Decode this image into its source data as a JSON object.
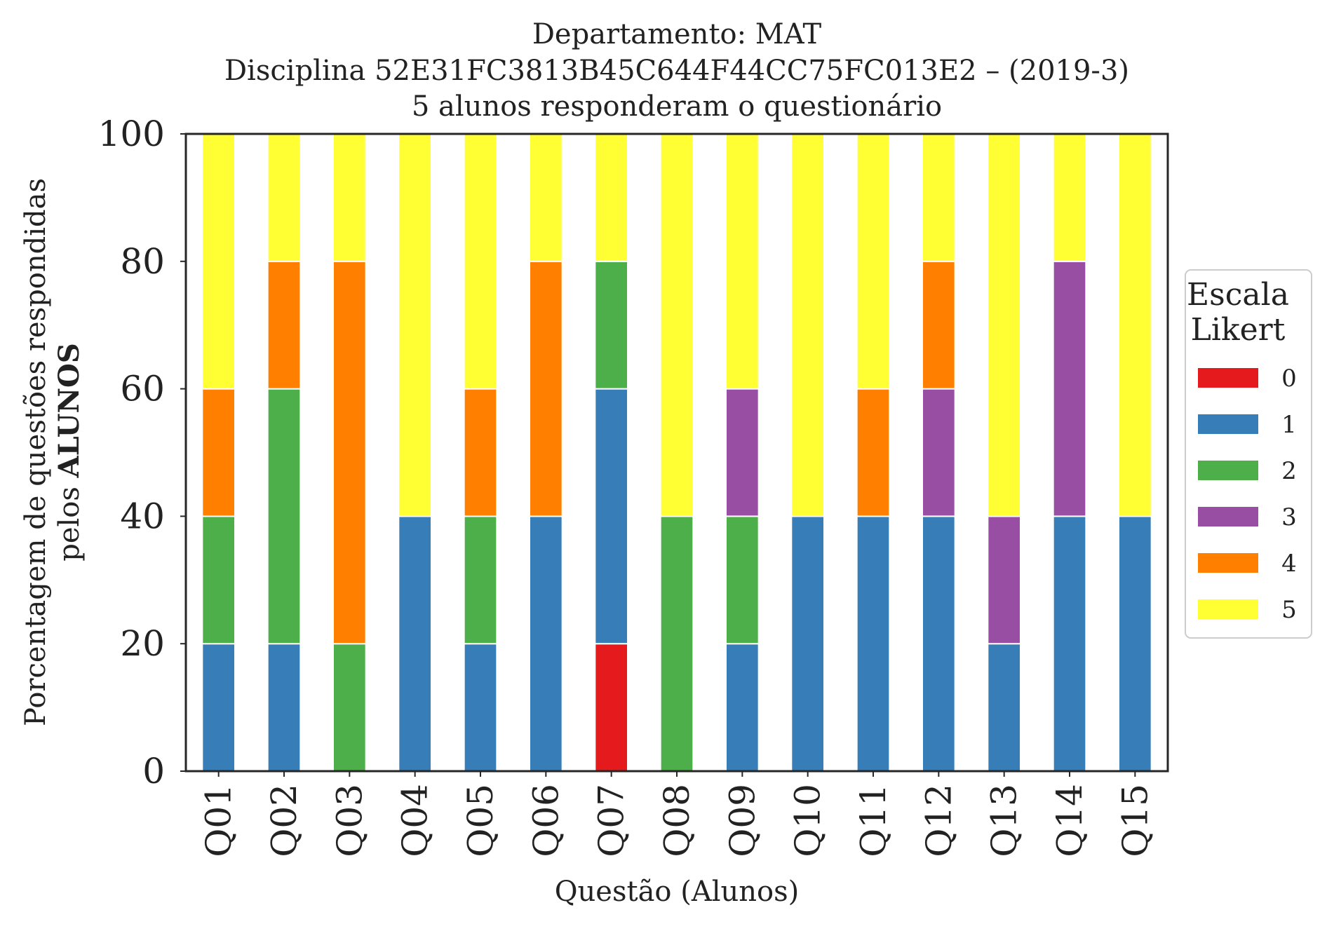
{
  "chart_data": {
    "type": "bar",
    "stacked": true,
    "title": "Departamento: MAT",
    "subtitle": "Disciplina 52E31FC3813B45C644F44CC75FC013E2 – (2019-3)",
    "subtitle2": "5 alunos responderam o questionário",
    "xlabel": "Questão (Alunos)",
    "ylabel_line1": "Porcentagem de questões respondidas",
    "ylabel_line2_prefix": "pelos",
    "ylabel_line2_bold": "ALUNOS",
    "ylim": [
      0,
      100
    ],
    "yticks": [
      0,
      20,
      40,
      60,
      80,
      100
    ],
    "grid": false,
    "legend": {
      "title_line1": "Escala",
      "title_line2": "Likert",
      "placement": "right"
    },
    "categories": [
      "Q01",
      "Q02",
      "Q03",
      "Q04",
      "Q05",
      "Q06",
      "Q07",
      "Q08",
      "Q09",
      "Q10",
      "Q11",
      "Q12",
      "Q13",
      "Q14",
      "Q15"
    ],
    "series": [
      {
        "name": "0",
        "color": "#e41a1c",
        "values": [
          0,
          0,
          0,
          0,
          0,
          0,
          20,
          0,
          0,
          0,
          0,
          0,
          0,
          0,
          0
        ]
      },
      {
        "name": "1",
        "color": "#377eb8",
        "values": [
          20,
          20,
          0,
          40,
          20,
          40,
          40,
          0,
          20,
          40,
          40,
          40,
          20,
          40,
          40
        ]
      },
      {
        "name": "2",
        "color": "#4daf4a",
        "values": [
          20,
          40,
          20,
          0,
          20,
          0,
          20,
          40,
          20,
          0,
          0,
          0,
          0,
          0,
          0
        ]
      },
      {
        "name": "3",
        "color": "#984ea3",
        "values": [
          0,
          0,
          0,
          0,
          0,
          0,
          0,
          0,
          20,
          0,
          0,
          20,
          20,
          40,
          0
        ]
      },
      {
        "name": "4",
        "color": "#ff7f00",
        "values": [
          20,
          20,
          60,
          0,
          20,
          40,
          0,
          0,
          0,
          0,
          20,
          20,
          0,
          0,
          0
        ]
      },
      {
        "name": "5",
        "color": "#ffff33",
        "values": [
          40,
          20,
          20,
          60,
          40,
          20,
          20,
          60,
          40,
          60,
          40,
          20,
          60,
          20,
          60
        ]
      }
    ]
  }
}
